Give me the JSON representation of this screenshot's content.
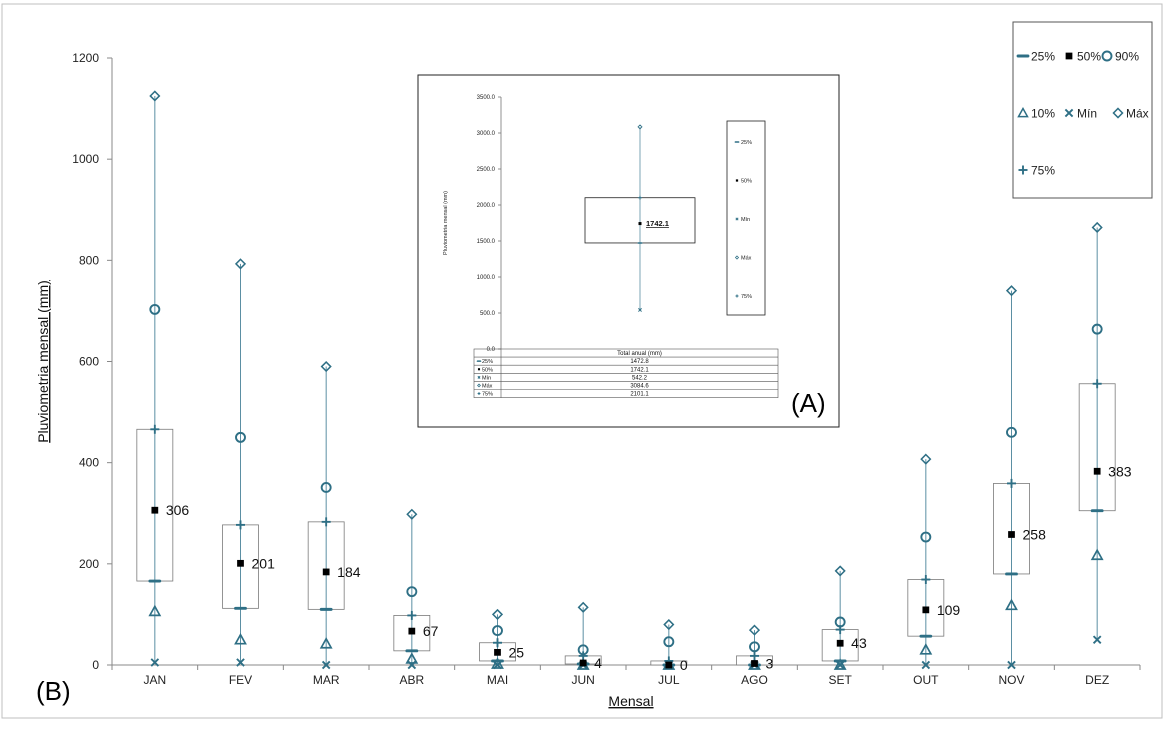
{
  "chart_data": [
    {
      "panel_label": "(B)",
      "type": "box",
      "xlabel": "Mensal",
      "ylabel": "Pluviometria mensal (mm)",
      "ylim": [
        0,
        1200
      ],
      "yticks": [
        "0",
        "200",
        "400",
        "600",
        "800",
        "1000",
        "1200"
      ],
      "categories": [
        "JAN",
        "FEV",
        "MAR",
        "ABR",
        "MAI",
        "JUN",
        "JUL",
        "AGO",
        "SET",
        "OUT",
        "NOV",
        "DEZ"
      ],
      "series": [
        {
          "name": "25%",
          "values": [
            166,
            112,
            110,
            28,
            8,
            2,
            0,
            0,
            8,
            57,
            180,
            305
          ]
        },
        {
          "name": "50%",
          "values": [
            306,
            201,
            184,
            67,
            25,
            4,
            0,
            3,
            43,
            109,
            258,
            383
          ]
        },
        {
          "name": "90%",
          "values": [
            703,
            450,
            351,
            145,
            68,
            30,
            46,
            36,
            85,
            253,
            460,
            664
          ]
        },
        {
          "name": "10%",
          "values": [
            106,
            50,
            42,
            12,
            2,
            0,
            0,
            0,
            0,
            30,
            118,
            217
          ]
        },
        {
          "name": "Mín",
          "values": [
            5,
            5,
            0,
            0,
            0,
            0,
            0,
            0,
            0,
            0,
            0,
            50
          ]
        },
        {
          "name": "Máx",
          "values": [
            1125,
            793,
            590,
            298,
            100,
            114,
            80,
            69,
            186,
            407,
            740,
            865
          ]
        },
        {
          "name": "75%",
          "values": [
            466,
            277,
            283,
            98,
            44,
            18,
            8,
            18,
            70,
            169,
            359,
            556
          ]
        }
      ],
      "median_labels": [
        "306",
        "201",
        "184",
        "67",
        "25",
        "4",
        "0",
        "3",
        "43",
        "109",
        "258",
        "383"
      ],
      "legend": {
        "position": "top-right",
        "entries": [
          "25%",
          "50%",
          "90%",
          "10%",
          "Mín",
          "Máx",
          "75%"
        ]
      },
      "colors": {
        "marker": "#2e6f85",
        "median": "#000000",
        "box": "#7a7a7a"
      }
    },
    {
      "panel_label": "(A)",
      "type": "box",
      "ylabel": "Pluviometria mensal (mm)",
      "ylim": [
        0,
        3500
      ],
      "yticks": [
        "0.0",
        "500.0",
        "1000.0",
        "1500.0",
        "2000.0",
        "2500.0",
        "3000.0",
        "3500.0"
      ],
      "median_label": "1742.1",
      "legend": {
        "position": "right",
        "entries": [
          "25%",
          "50%",
          "Mín",
          "Máx",
          "75%"
        ]
      },
      "table": {
        "header": "Total anual (mm)",
        "rows": [
          {
            "name": "25%",
            "value": 1472.8,
            "text": "1472.8"
          },
          {
            "name": "50%",
            "value": 1742.1,
            "text": "1742.1"
          },
          {
            "name": "Mín",
            "value": 542.2,
            "text": "542.2"
          },
          {
            "name": "Máx",
            "value": 3084.6,
            "text": "3084.6"
          },
          {
            "name": "75%",
            "value": 2101.1,
            "text": "2101.1"
          }
        ]
      }
    }
  ]
}
